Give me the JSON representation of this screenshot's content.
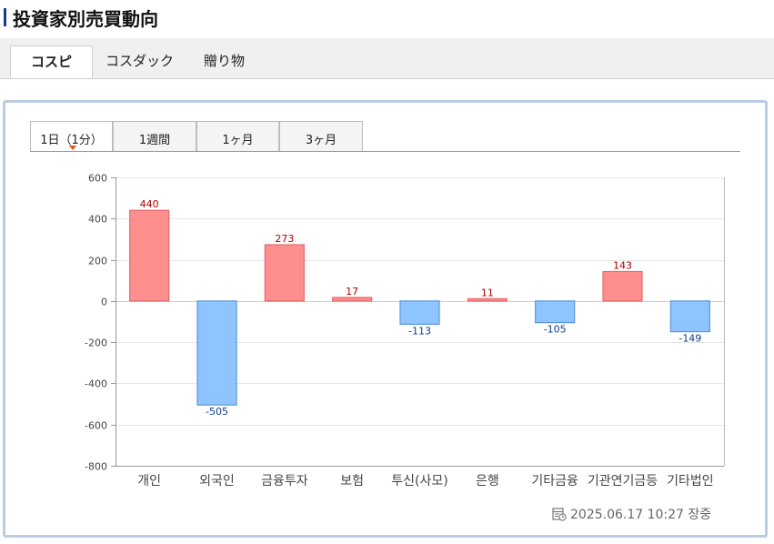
{
  "header": {
    "title": "投資家別売買動向"
  },
  "main_tabs": [
    {
      "label": "コスピ",
      "active": true
    },
    {
      "label": "コスダック",
      "active": false
    },
    {
      "label": "贈り物",
      "active": false
    }
  ],
  "period_tabs": [
    {
      "label": "1日（1分）",
      "active": true
    },
    {
      "label": "1週間",
      "active": false
    },
    {
      "label": "1ヶ月",
      "active": false
    },
    {
      "label": "3ヶ月",
      "active": false
    }
  ],
  "chart_data": {
    "type": "bar",
    "categories": [
      "개인",
      "외국인",
      "금융투자",
      "보험",
      "투신(사모)",
      "은행",
      "기타금융",
      "기관연기금등",
      "기타법인"
    ],
    "values": [
      440,
      -505,
      273,
      17,
      -113,
      11,
      -105,
      143,
      -149
    ],
    "ylim": [
      -800,
      600
    ],
    "yticks": [
      600,
      400,
      200,
      0,
      -200,
      -400,
      -600,
      -800
    ],
    "grid": true,
    "colors": {
      "positive": "#ff8f8f",
      "positive_border": "#e46a6a",
      "negative": "#8ec4ff",
      "negative_border": "#5b95d9",
      "positive_label": "#b00000",
      "negative_label": "#0a3f8f"
    }
  },
  "footer": {
    "timestamp": "2025.06.17 10:27 장중",
    "icon": "calendar-clock-icon"
  }
}
